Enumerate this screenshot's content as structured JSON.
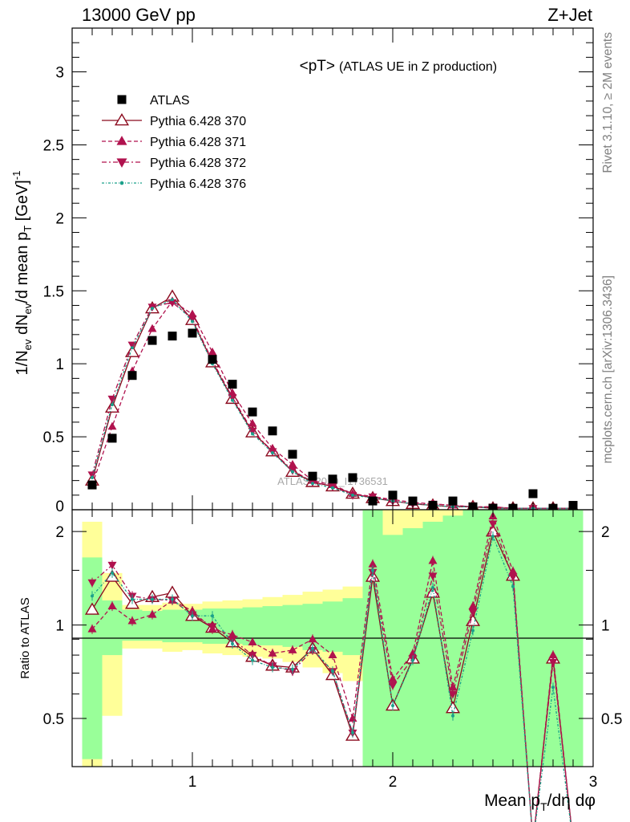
{
  "header": {
    "left": "13000 GeV pp",
    "right": "Z+Jet"
  },
  "side_labels": {
    "rivet": "Rivet 3.1.10, ≥ 2M events",
    "mcplots": "mcplots.cern.ch [arXiv:1306.3436]"
  },
  "watermark": "ATLAS_2019_I1736531",
  "chart_data": [
    {
      "type": "scatter",
      "panel": "main",
      "title": "<pT>",
      "title_suffix": "(ATLAS UE in Z production)",
      "ylabel": "1/N_ev dN_ev/d mean p_T [GeV]^-1",
      "xlim": [
        0.4,
        3.0
      ],
      "ylim": [
        0,
        3.3
      ],
      "y_ticks": [
        0.5,
        1,
        1.5,
        2,
        2.5,
        3
      ],
      "y_tick_labels": [
        "0.5",
        "1",
        "1.5",
        "2",
        "2.5",
        "3"
      ],
      "x": [
        0.5,
        0.6,
        0.7,
        0.8,
        0.9,
        1.0,
        1.1,
        1.2,
        1.3,
        1.4,
        1.5,
        1.6,
        1.7,
        1.8,
        1.9,
        2.0,
        2.1,
        2.2,
        2.3,
        2.4,
        2.5,
        2.6,
        2.7,
        2.8,
        2.9
      ],
      "legend": [
        "ATLAS",
        "Pythia 6.428 370",
        "Pythia 6.428 371",
        "Pythia 6.428 372",
        "Pythia 6.428 376"
      ],
      "series": [
        {
          "name": "ATLAS",
          "color": "#000000",
          "marker": "square",
          "values": [
            0.17,
            0.49,
            0.92,
            1.16,
            1.19,
            1.21,
            1.03,
            0.86,
            0.67,
            0.54,
            0.38,
            0.23,
            0.21,
            0.22,
            0.06,
            0.1,
            0.06,
            0.03,
            0.06,
            0.02,
            0.01,
            0.01,
            0.11,
            0.01,
            0.03
          ]
        },
        {
          "name": "Pythia 6.428 370",
          "color": "#8b0a1e",
          "marker": "triangle-open",
          "values": [
            0.2,
            0.7,
            1.08,
            1.38,
            1.46,
            1.3,
            1.01,
            0.76,
            0.53,
            0.4,
            0.26,
            0.19,
            0.16,
            0.11,
            0.08,
            0.06,
            0.04,
            0.03,
            0.02,
            0.02,
            0.01,
            0.01,
            0.01,
            0.01,
            0.01
          ]
        },
        {
          "name": "Pythia 6.428 371",
          "color": "#b0124e",
          "marker": "triangle-filled",
          "values": [
            0.17,
            0.57,
            0.95,
            1.24,
            1.43,
            1.34,
            1.08,
            0.8,
            0.59,
            0.42,
            0.31,
            0.2,
            0.17,
            0.11,
            0.09,
            0.07,
            0.05,
            0.04,
            0.03,
            0.02,
            0.02,
            0.01,
            0.01,
            0.01,
            0.01
          ]
        },
        {
          "name": "Pythia 6.428 372",
          "color": "#b0124e",
          "marker": "triangle-down",
          "values": [
            0.24,
            0.76,
            1.13,
            1.39,
            1.42,
            1.31,
            1.02,
            0.77,
            0.54,
            0.4,
            0.27,
            0.19,
            0.16,
            0.1,
            0.09,
            0.06,
            0.04,
            0.04,
            0.03,
            0.02,
            0.02,
            0.01,
            0.01,
            0.01,
            0.01
          ]
        },
        {
          "name": "Pythia 6.428 376",
          "color": "#1aa08a",
          "marker": "dot",
          "values": [
            0.22,
            0.72,
            1.11,
            1.38,
            1.44,
            1.29,
            1.0,
            0.75,
            0.52,
            0.39,
            0.26,
            0.18,
            0.15,
            0.1,
            0.08,
            0.06,
            0.04,
            0.03,
            0.02,
            0.02,
            0.01,
            0.01,
            0.01,
            0.01,
            0.01
          ]
        }
      ]
    },
    {
      "type": "line",
      "panel": "ratio",
      "ylabel": "Ratio to ATLAS",
      "xlabel": "Mean p_T/dη dφ",
      "xlim": [
        0.4,
        3.0
      ],
      "ylim": [
        0.35,
        2.35
      ],
      "y_ticks": [
        0.5,
        1,
        2
      ],
      "y_tick_labels": [
        "0.5",
        "1",
        "2"
      ],
      "x_ticks": [
        1,
        2,
        3
      ],
      "x_tick_labels": [
        "1",
        "2",
        "3"
      ],
      "x": [
        0.5,
        0.6,
        0.7,
        0.8,
        0.9,
        1.0,
        1.1,
        1.2,
        1.3,
        1.4,
        1.5,
        1.6,
        1.7,
        1.8,
        1.9,
        2.0,
        2.1,
        2.2,
        2.3,
        2.4,
        2.5,
        2.6,
        2.7,
        2.8,
        2.9
      ],
      "bins": [
        [
          0.45,
          0.55
        ],
        [
          0.55,
          0.65
        ],
        [
          0.65,
          0.75
        ],
        [
          0.75,
          0.85
        ],
        [
          0.85,
          0.95
        ],
        [
          0.95,
          1.05
        ],
        [
          1.05,
          1.15
        ],
        [
          1.15,
          1.25
        ],
        [
          1.25,
          1.35
        ],
        [
          1.35,
          1.45
        ],
        [
          1.45,
          1.55
        ],
        [
          1.55,
          1.65
        ],
        [
          1.65,
          1.75
        ],
        [
          1.75,
          1.85
        ],
        [
          1.85,
          1.95
        ],
        [
          1.95,
          2.05
        ],
        [
          2.05,
          2.15
        ],
        [
          2.15,
          2.25
        ],
        [
          2.25,
          2.35
        ],
        [
          2.35,
          2.45
        ],
        [
          2.45,
          2.55
        ],
        [
          2.55,
          2.65
        ],
        [
          2.65,
          2.75
        ],
        [
          2.75,
          2.85
        ],
        [
          2.85,
          2.95
        ]
      ],
      "band_yellow": [
        [
          0.35,
          2.15
        ],
        [
          0.51,
          1.47
        ],
        [
          0.84,
          1.16
        ],
        [
          0.84,
          1.16
        ],
        [
          0.82,
          1.18
        ],
        [
          0.83,
          1.17
        ],
        [
          0.81,
          1.19
        ],
        [
          0.8,
          1.2
        ],
        [
          0.79,
          1.21
        ],
        [
          0.78,
          1.23
        ],
        [
          0.76,
          1.25
        ],
        [
          0.73,
          1.28
        ],
        [
          0.7,
          1.3
        ],
        [
          0.66,
          1.33
        ],
        [
          0.35,
          2.35
        ],
        [
          0.35,
          2.35
        ],
        [
          0.35,
          2.35
        ],
        [
          0.35,
          2.35
        ],
        [
          0.35,
          2.35
        ],
        [
          0.35,
          2.35
        ],
        [
          0.35,
          2.35
        ],
        [
          0.35,
          2.35
        ],
        [
          0.35,
          2.35
        ],
        [
          0.35,
          2.35
        ],
        [
          0.35,
          2.35
        ]
      ],
      "band_green": [
        [
          0.37,
          1.65
        ],
        [
          0.8,
          1.2
        ],
        [
          0.89,
          1.12
        ],
        [
          0.89,
          1.11
        ],
        [
          0.88,
          1.12
        ],
        [
          0.88,
          1.12
        ],
        [
          0.87,
          1.13
        ],
        [
          0.87,
          1.13
        ],
        [
          0.86,
          1.14
        ],
        [
          0.86,
          1.15
        ],
        [
          0.85,
          1.16
        ],
        [
          0.83,
          1.17
        ],
        [
          0.82,
          1.19
        ],
        [
          0.8,
          1.22
        ],
        [
          0.35,
          2.35
        ],
        [
          0.35,
          1.95
        ],
        [
          0.35,
          2.05
        ],
        [
          0.35,
          2.15
        ],
        [
          0.35,
          2.25
        ],
        [
          0.35,
          2.35
        ],
        [
          0.35,
          2.35
        ],
        [
          0.35,
          2.35
        ],
        [
          0.35,
          2.35
        ],
        [
          0.35,
          2.35
        ],
        [
          0.35,
          2.35
        ]
      ],
      "yellow_gaps": [
        [
          2.25,
          2.35,
          2.35,
          2.35
        ],
        [
          2.75,
          2.85,
          2.35,
          2.35
        ]
      ],
      "series": [
        {
          "name": "Pythia 6.428 370",
          "color": "#8b0a1e",
          "marker": "triangle-open",
          "values": [
            1.12,
            1.43,
            1.17,
            1.23,
            1.27,
            1.07,
            0.98,
            0.88,
            0.79,
            0.74,
            0.73,
            0.84,
            0.69,
            0.44,
            1.43,
            0.55,
            0.78,
            1.27,
            0.54,
            1.03,
            2.0,
            1.44,
            0.1,
            0.78,
            0.1
          ]
        },
        {
          "name": "Pythia 6.428 371",
          "color": "#b0124e",
          "marker": "triangle-filled",
          "values": [
            0.97,
            1.15,
            1.03,
            1.08,
            1.2,
            1.11,
            0.97,
            0.93,
            0.88,
            0.81,
            0.83,
            0.9,
            0.8,
            0.5,
            1.57,
            0.67,
            0.81,
            1.61,
            0.63,
            1.15,
            2.24,
            1.49,
            0.1,
            0.8,
            0.1
          ]
        },
        {
          "name": "Pythia 6.428 372",
          "color": "#b0124e",
          "marker": "triangle-down",
          "values": [
            1.37,
            1.56,
            1.24,
            1.21,
            1.2,
            1.08,
            0.99,
            0.9,
            0.8,
            0.74,
            0.71,
            0.83,
            0.71,
            0.45,
            1.48,
            0.64,
            0.78,
            1.44,
            0.6,
            1.1,
            2.12,
            1.43,
            0.1,
            0.76,
            0.1
          ]
        },
        {
          "name": "Pythia 6.428 376",
          "color": "#1aa08a",
          "marker": "dot",
          "values": [
            1.24,
            1.47,
            1.21,
            1.21,
            1.21,
            1.07,
            1.07,
            0.87,
            0.77,
            0.73,
            0.72,
            0.84,
            0.71,
            0.45,
            1.5,
            0.55,
            0.77,
            1.32,
            0.51,
            0.96,
            1.93,
            1.33,
            0.1,
            0.63,
            0.1
          ]
        }
      ]
    }
  ]
}
